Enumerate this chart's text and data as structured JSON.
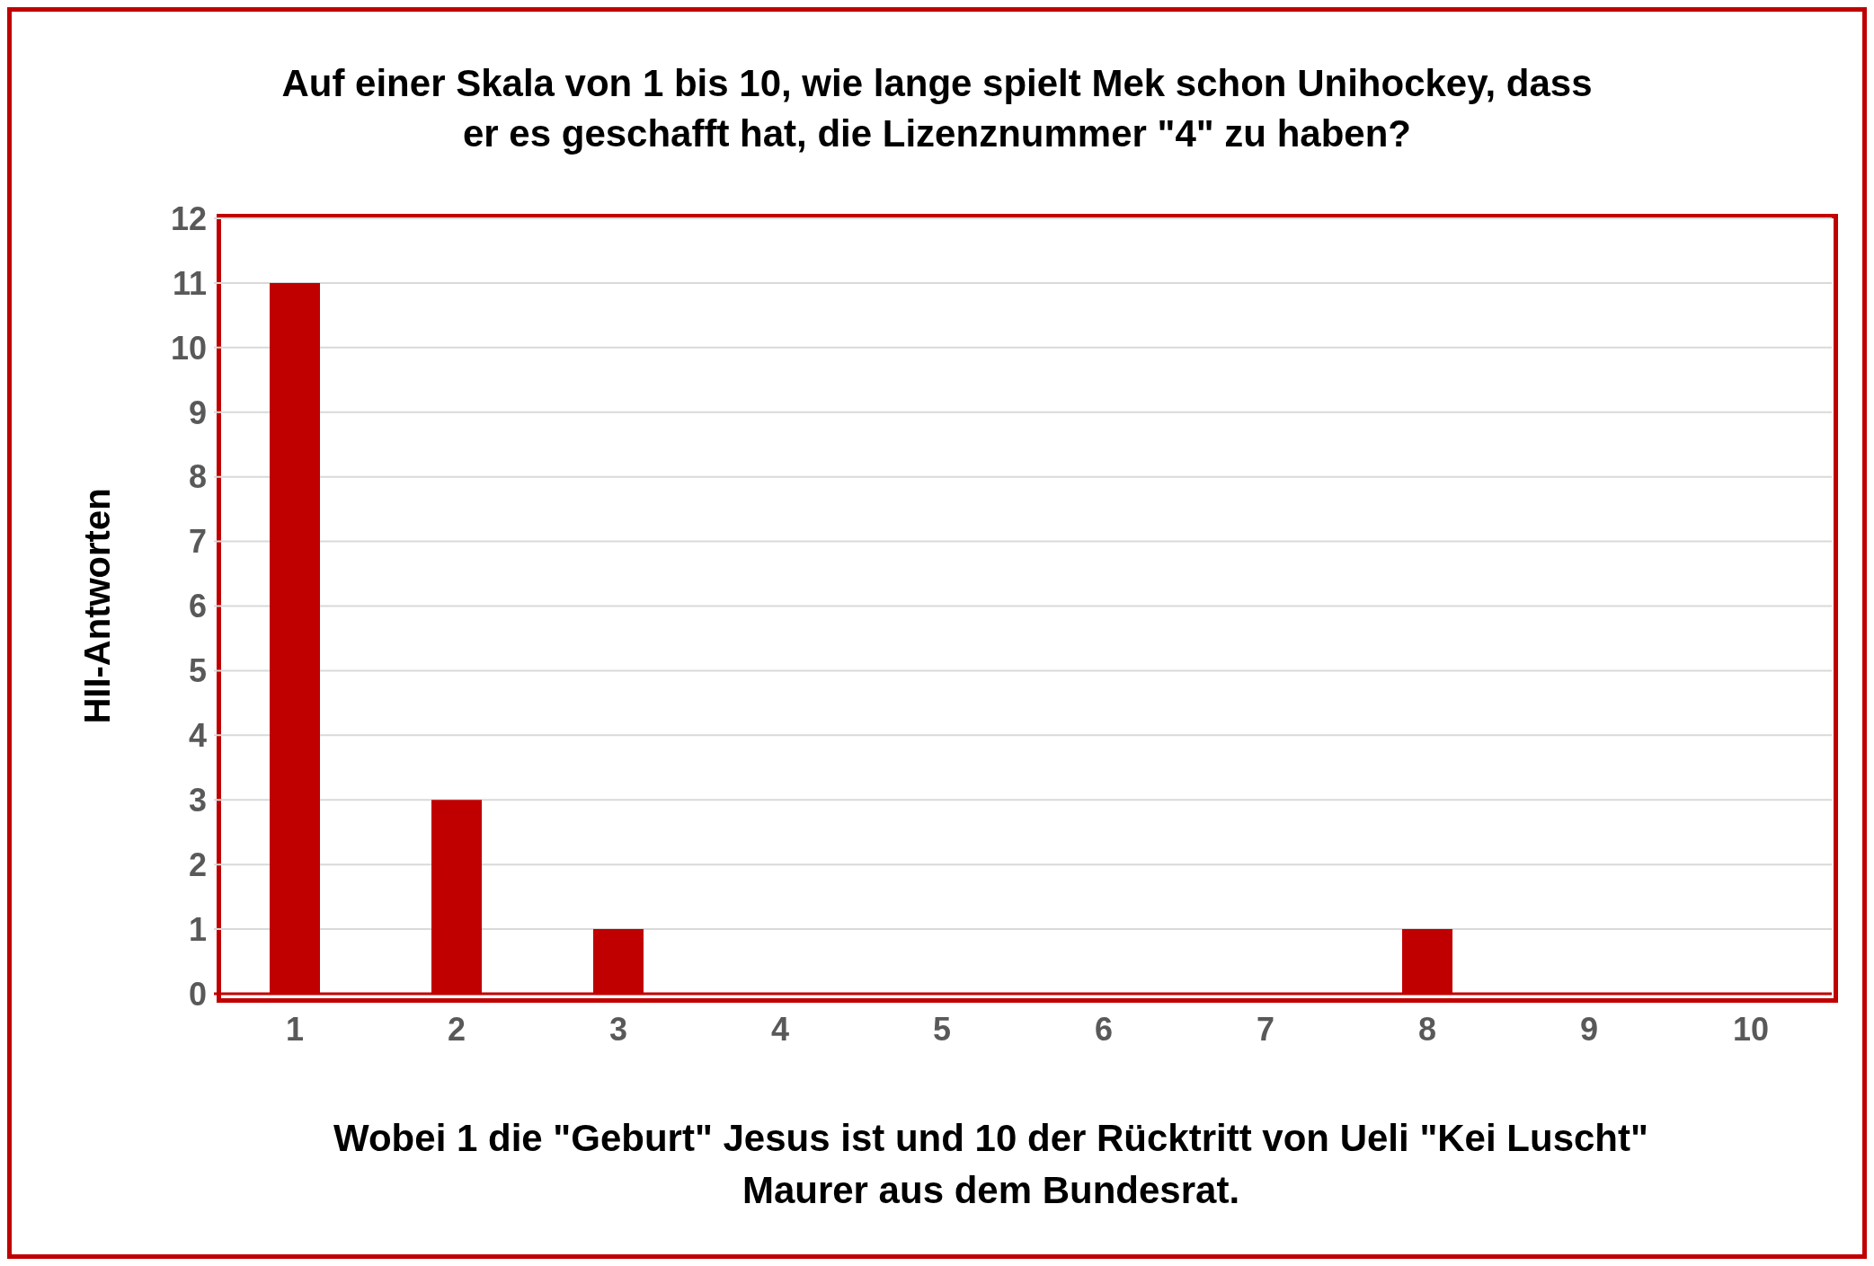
{
  "chart_data": {
    "type": "bar",
    "title": "Auf einer Skala von 1 bis 10, wie lange spielt Mek schon Unihockey, dass er es geschafft hat, die Lizenznummer \"4\" zu haben?",
    "xlabel": "Wobei 1 die \"Geburt\" Jesus ist und 10 der Rücktritt von Ueli \"Kei Luscht\" Maurer aus dem Bundesrat.",
    "ylabel": "HII-Antworten",
    "categories": [
      "1",
      "2",
      "3",
      "4",
      "5",
      "6",
      "7",
      "8",
      "9",
      "10"
    ],
    "values": [
      11,
      3,
      1,
      0,
      0,
      0,
      0,
      1,
      0,
      0
    ],
    "color": "#c00000",
    "ylim": [
      0,
      12
    ],
    "yticks": [
      0,
      1,
      2,
      3,
      4,
      5,
      6,
      7,
      8,
      9,
      10,
      11,
      12
    ],
    "grid": "y",
    "legend": false
  }
}
